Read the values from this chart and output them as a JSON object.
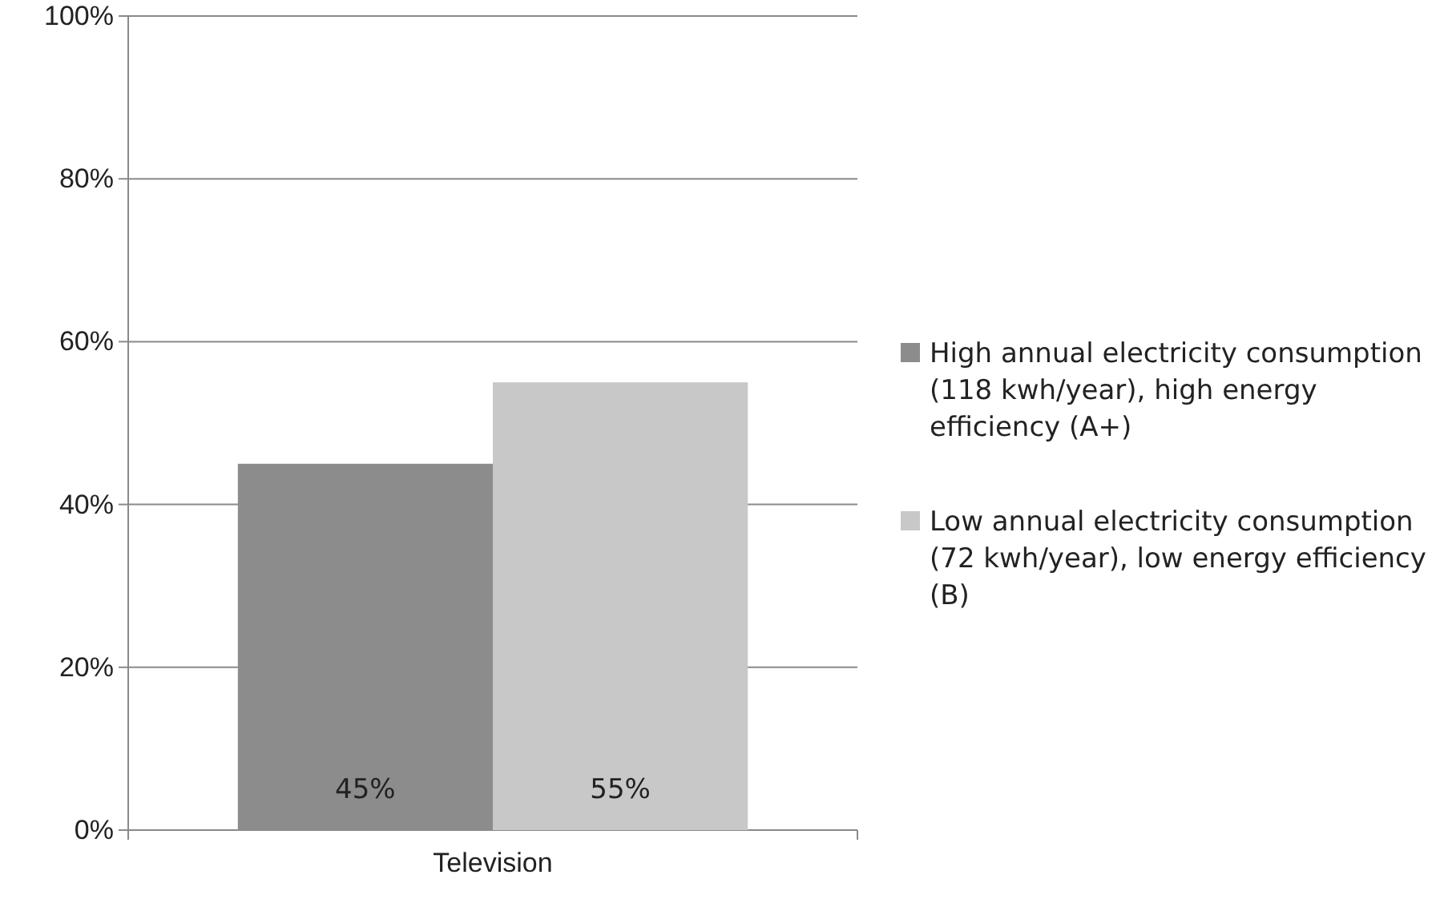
{
  "chart_data": {
    "type": "bar",
    "categories": [
      "Television"
    ],
    "series": [
      {
        "name": "High annual electricity consumption (118 kwh/year), high energy efficiency (A+)",
        "color": "#8c8c8c",
        "values": [
          45
        ],
        "value_labels": [
          "45%"
        ]
      },
      {
        "name": "Low annual electricity consumption (72 kwh/year), low energy efficiency (B)",
        "color": "#c8c8c8",
        "values": [
          55
        ],
        "value_labels": [
          "55%"
        ]
      }
    ],
    "ylim": [
      0,
      100
    ],
    "yticks": [
      {
        "value": 0,
        "label": "0%"
      },
      {
        "value": 20,
        "label": "20%"
      },
      {
        "value": 40,
        "label": "40%"
      },
      {
        "value": 60,
        "label": "60%"
      },
      {
        "value": 80,
        "label": "80%"
      },
      {
        "value": 100,
        "label": "100%"
      }
    ],
    "grid": "y",
    "legend": "right"
  }
}
